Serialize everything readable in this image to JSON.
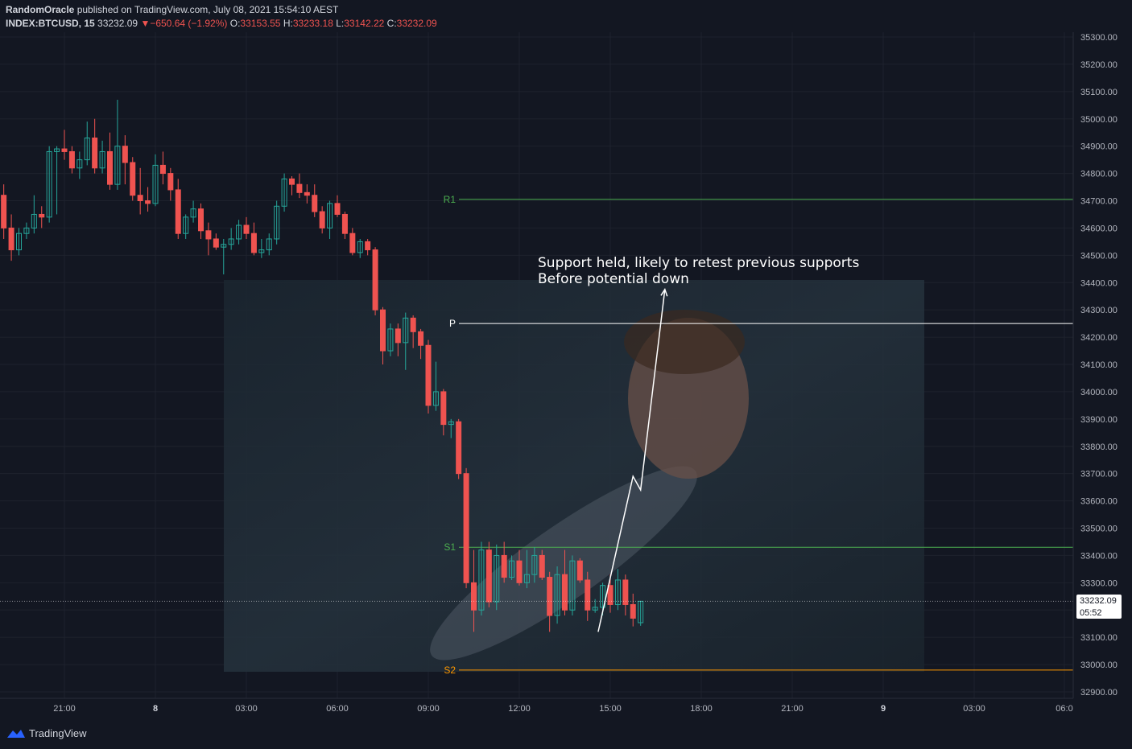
{
  "header": {
    "publisher": "RandomOracle",
    "published_text": "published on TradingView.com, July 08, 2021 15:54:10 AEST",
    "symbol": "INDEX:BTCUSD, 15",
    "last": "33232.09",
    "change": "−650.64 (−1.92%)",
    "open_label": "O:",
    "open": "33153.55",
    "high_label": "H:",
    "high": "33233.18",
    "low_label": "L:",
    "low": "33142.22",
    "close_label": "C:",
    "close": "33232.09"
  },
  "footer": {
    "brand": "TradingView"
  },
  "price_tag": {
    "price": "33232.09",
    "countdown": "05:52"
  },
  "annotation": {
    "line1": "Support held, likely to retest previous supports",
    "line2": "Before potential down"
  },
  "colors": {
    "background": "#131722",
    "up": "#26a69a",
    "down": "#ef5350",
    "resistance": "#4caf50",
    "pivot": "#ffffff",
    "support2": "#ff9800"
  },
  "chart_data": {
    "type": "candlestick",
    "ylim": [
      32850,
      35320
    ],
    "y_ticks": [
      32900,
      33000,
      33100,
      33200,
      33300,
      33400,
      33500,
      33600,
      33700,
      33800,
      33900,
      34000,
      34100,
      34200,
      34300,
      34400,
      34500,
      34600,
      34700,
      34800,
      34900,
      35000,
      35100,
      35200,
      35300
    ],
    "x_ticks": [
      "21:00",
      "8",
      "03:00",
      "06:00",
      "09:00",
      "12:00",
      "15:00",
      "18:00",
      "21:00",
      "9",
      "03:00",
      "06:0"
    ],
    "levels": [
      {
        "label": "R1",
        "value": 34705
      },
      {
        "label": "P",
        "value": 34250
      },
      {
        "label": "S1",
        "value": 33430
      },
      {
        "label": "S2",
        "value": 32980
      }
    ],
    "last_price": 33232.09,
    "projection": [
      [
        33120,
        14.6
      ],
      [
        33690,
        15.75
      ],
      [
        33640,
        16.0
      ],
      [
        34375,
        16.8
      ]
    ],
    "candles": [
      [
        17.75,
        34750,
        34850,
        34650,
        34700
      ],
      [
        18.0,
        34700,
        34750,
        34600,
        34680
      ],
      [
        18.25,
        34680,
        34820,
        34660,
        34800
      ],
      [
        18.5,
        34800,
        34850,
        34620,
        34650
      ],
      [
        18.75,
        34650,
        34750,
        34580,
        34720
      ],
      [
        19.0,
        34720,
        34760,
        34560,
        34600
      ],
      [
        19.25,
        34600,
        34650,
        34480,
        34520
      ],
      [
        19.5,
        34520,
        34600,
        34500,
        34580
      ],
      [
        19.75,
        34580,
        34620,
        34560,
        34600
      ],
      [
        20.0,
        34600,
        34720,
        34580,
        34650
      ],
      [
        20.25,
        34650,
        34680,
        34600,
        34640
      ],
      [
        20.5,
        34640,
        34900,
        34620,
        34880
      ],
      [
        20.75,
        34880,
        34900,
        34650,
        34890
      ],
      [
        21.0,
        34890,
        34960,
        34850,
        34880
      ],
      [
        21.25,
        34880,
        34900,
        34800,
        34820
      ],
      [
        21.5,
        34820,
        34880,
        34780,
        34850
      ],
      [
        21.75,
        34850,
        34990,
        34830,
        34930
      ],
      [
        22.0,
        34930,
        35000,
        34800,
        34820
      ],
      [
        22.25,
        34820,
        34920,
        34800,
        34880
      ],
      [
        22.5,
        34880,
        34950,
        34740,
        34760
      ],
      [
        22.75,
        34760,
        35070,
        34740,
        34900
      ],
      [
        23.0,
        34900,
        34940,
        34760,
        34840
      ],
      [
        23.25,
        34840,
        34860,
        34700,
        34720
      ],
      [
        23.5,
        34720,
        34820,
        34650,
        34700
      ],
      [
        23.75,
        34700,
        34750,
        34660,
        34690
      ],
      [
        0.0,
        34690,
        34870,
        34680,
        34830
      ],
      [
        0.25,
        34830,
        34880,
        34760,
        34800
      ],
      [
        0.5,
        34800,
        34820,
        34700,
        34740
      ],
      [
        0.75,
        34740,
        34780,
        34560,
        34580
      ],
      [
        1.0,
        34580,
        34650,
        34560,
        34640
      ],
      [
        1.25,
        34640,
        34700,
        34620,
        34670
      ],
      [
        1.5,
        34670,
        34690,
        34560,
        34590
      ],
      [
        1.75,
        34590,
        34620,
        34500,
        34560
      ],
      [
        2.0,
        34560,
        34580,
        34520,
        34530
      ],
      [
        2.25,
        34530,
        34560,
        34430,
        34540
      ],
      [
        2.5,
        34540,
        34600,
        34520,
        34560
      ],
      [
        2.75,
        34560,
        34630,
        34540,
        34610
      ],
      [
        3.0,
        34610,
        34640,
        34560,
        34580
      ],
      [
        3.25,
        34580,
        34620,
        34500,
        34510
      ],
      [
        3.5,
        34510,
        34560,
        34490,
        34520
      ],
      [
        3.75,
        34520,
        34580,
        34500,
        34560
      ],
      [
        4.0,
        34560,
        34700,
        34540,
        34680
      ],
      [
        4.25,
        34680,
        34800,
        34660,
        34780
      ],
      [
        4.5,
        34780,
        34790,
        34720,
        34760
      ],
      [
        4.75,
        34760,
        34800,
        34710,
        34730
      ],
      [
        5.0,
        34730,
        34760,
        34690,
        34720
      ],
      [
        5.25,
        34720,
        34760,
        34640,
        34660
      ],
      [
        5.5,
        34660,
        34680,
        34580,
        34600
      ],
      [
        5.75,
        34600,
        34700,
        34560,
        34690
      ],
      [
        6.0,
        34690,
        34720,
        34640,
        34650
      ],
      [
        6.25,
        34650,
        34660,
        34560,
        34580
      ],
      [
        6.5,
        34580,
        34600,
        34500,
        34510
      ],
      [
        6.75,
        34510,
        34560,
        34490,
        34550
      ],
      [
        7.0,
        34550,
        34560,
        34500,
        34520
      ],
      [
        7.25,
        34520,
        34530,
        34280,
        34300
      ],
      [
        7.5,
        34300,
        34310,
        34100,
        34150
      ],
      [
        7.75,
        34150,
        34250,
        34130,
        34230
      ],
      [
        8.0,
        34230,
        34250,
        34130,
        34180
      ],
      [
        8.25,
        34180,
        34290,
        34080,
        34270
      ],
      [
        8.5,
        34270,
        34280,
        34160,
        34220
      ],
      [
        8.75,
        34220,
        34230,
        34120,
        34170
      ],
      [
        9.0,
        34170,
        34190,
        33920,
        33950
      ],
      [
        9.25,
        33950,
        34110,
        33930,
        34000
      ],
      [
        9.5,
        34000,
        34010,
        33840,
        33880
      ],
      [
        9.75,
        33880,
        33900,
        33830,
        33890
      ],
      [
        10.0,
        33890,
        33900,
        33680,
        33700
      ],
      [
        10.25,
        33700,
        33720,
        33280,
        33300
      ],
      [
        10.5,
        33300,
        33420,
        33120,
        33200
      ],
      [
        10.75,
        33200,
        33450,
        33180,
        33420
      ],
      [
        11.0,
        33420,
        33450,
        33210,
        33230
      ],
      [
        11.25,
        33230,
        33440,
        33200,
        33400
      ],
      [
        11.5,
        33400,
        33450,
        33300,
        33320
      ],
      [
        11.75,
        33320,
        33400,
        33310,
        33380
      ],
      [
        12.0,
        33380,
        33420,
        33290,
        33300
      ],
      [
        12.25,
        33300,
        33420,
        33280,
        33330
      ],
      [
        12.5,
        33330,
        33430,
        33300,
        33400
      ],
      [
        12.75,
        33400,
        33420,
        33310,
        33320
      ],
      [
        13.0,
        33320,
        33340,
        33120,
        33180
      ],
      [
        13.25,
        33180,
        33360,
        33150,
        33330
      ],
      [
        13.5,
        33330,
        33420,
        33180,
        33200
      ],
      [
        13.75,
        33200,
        33400,
        33180,
        33380
      ],
      [
        14.0,
        33380,
        33390,
        33300,
        33310
      ],
      [
        14.25,
        33310,
        33340,
        33160,
        33200
      ],
      [
        14.5,
        33200,
        33240,
        33190,
        33210
      ],
      [
        14.75,
        33210,
        33300,
        33180,
        33290
      ],
      [
        15.0,
        33290,
        33330,
        33190,
        33220
      ],
      [
        15.25,
        33220,
        33350,
        33200,
        33310
      ],
      [
        15.5,
        33310,
        33330,
        33180,
        33220
      ],
      [
        15.75,
        33220,
        33260,
        33140,
        33170
      ],
      [
        16.0,
        33153.55,
        33233.18,
        33142.22,
        33232.09
      ]
    ]
  }
}
